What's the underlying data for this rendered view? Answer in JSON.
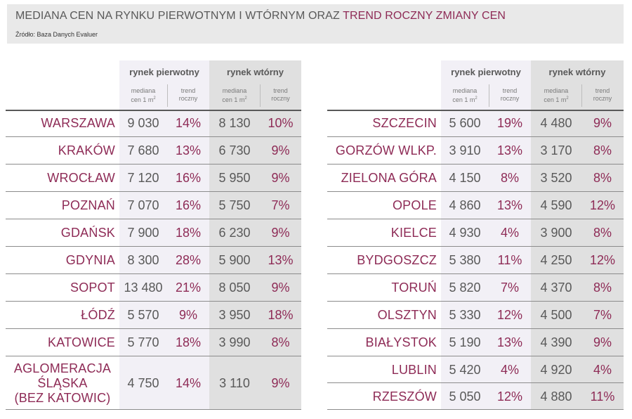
{
  "header": {
    "title_main": "MEDIANA CEN NA RYNKU PIERWOTNYM I WTÓRNYM ORAZ ",
    "title_accent": "TREND ROCZNY ZMIANY CEN",
    "source": "Źródło: Baza Danych Evaluer"
  },
  "columns": {
    "primary": "rynek pierwotny",
    "secondary": "rynek wtórny",
    "median_line1": "mediana",
    "median_line2": "cen 1 m",
    "median_sup": "2",
    "trend_line1": "trend",
    "trend_line2": "roczny"
  },
  "left_rows": [
    {
      "city": "WARSZAWA",
      "p_med": "9 030",
      "p_trend": "14%",
      "s_med": "8 130",
      "s_trend": "10%"
    },
    {
      "city": "KRAKÓW",
      "p_med": "7 680",
      "p_trend": "13%",
      "s_med": "6 730",
      "s_trend": "9%"
    },
    {
      "city": "WROCŁAW",
      "p_med": "7 120",
      "p_trend": "16%",
      "s_med": "5 950",
      "s_trend": "9%"
    },
    {
      "city": "POZNAŃ",
      "p_med": "7 070",
      "p_trend": "16%",
      "s_med": "5 750",
      "s_trend": "7%"
    },
    {
      "city": "GDAŃSK",
      "p_med": "7 900",
      "p_trend": "18%",
      "s_med": "6 230",
      "s_trend": "9%"
    },
    {
      "city": "GDYNIA",
      "p_med": "8 300",
      "p_trend": "28%",
      "s_med": "5 900",
      "s_trend": "13%"
    },
    {
      "city": "SOPOT",
      "p_med": "13 480",
      "p_trend": "21%",
      "s_med": "8 050",
      "s_trend": "9%"
    },
    {
      "city": "ŁÓDŹ",
      "p_med": "5 570",
      "p_trend": "9%",
      "s_med": "3 950",
      "s_trend": "18%"
    },
    {
      "city": "KATOWICE",
      "p_med": "5 770",
      "p_trend": "18%",
      "s_med": "3 990",
      "s_trend": "8%"
    },
    {
      "city_lines": [
        "AGLOMERACJA",
        "ŚLĄSKA",
        "(BEZ KATOWIC)"
      ],
      "p_med": "4 750",
      "p_trend": "14%",
      "s_med": "3 110",
      "s_trend": "9%"
    }
  ],
  "right_rows": [
    {
      "city": "SZCZECIN",
      "p_med": "5 600",
      "p_trend": "19%",
      "s_med": "4 480",
      "s_trend": "9%"
    },
    {
      "city": "GORZÓW WLKP.",
      "p_med": "3 910",
      "p_trend": "13%",
      "s_med": "3 170",
      "s_trend": "8%"
    },
    {
      "city": "ZIELONA GÓRA",
      "p_med": "4 150",
      "p_trend": "8%",
      "s_med": "3 520",
      "s_trend": "8%"
    },
    {
      "city": "OPOLE",
      "p_med": "4 860",
      "p_trend": "13%",
      "s_med": "4 590",
      "s_trend": "12%"
    },
    {
      "city": "KIELCE",
      "p_med": "4 930",
      "p_trend": "4%",
      "s_med": "3 900",
      "s_trend": "8%"
    },
    {
      "city": "BYDGOSZCZ",
      "p_med": "5 380",
      "p_trend": "11%",
      "s_med": "4 250",
      "s_trend": "12%"
    },
    {
      "city": "TORUŃ",
      "p_med": "5 820",
      "p_trend": "7%",
      "s_med": "4 370",
      "s_trend": "8%"
    },
    {
      "city": "OLSZTYN",
      "p_med": "5 330",
      "p_trend": "12%",
      "s_med": "4 500",
      "s_trend": "7%"
    },
    {
      "city": "BIAŁYSTOK",
      "p_med": "5 190",
      "p_trend": "13%",
      "s_med": "4 390",
      "s_trend": "9%"
    },
    {
      "city": "LUBLIN",
      "p_med": "5 420",
      "p_trend": "4%",
      "s_med": "4 920",
      "s_trend": "4%"
    },
    {
      "city": "RZESZÓW",
      "p_med": "5 050",
      "p_trend": "12%",
      "s_med": "4 880",
      "s_trend": "11%"
    }
  ]
}
